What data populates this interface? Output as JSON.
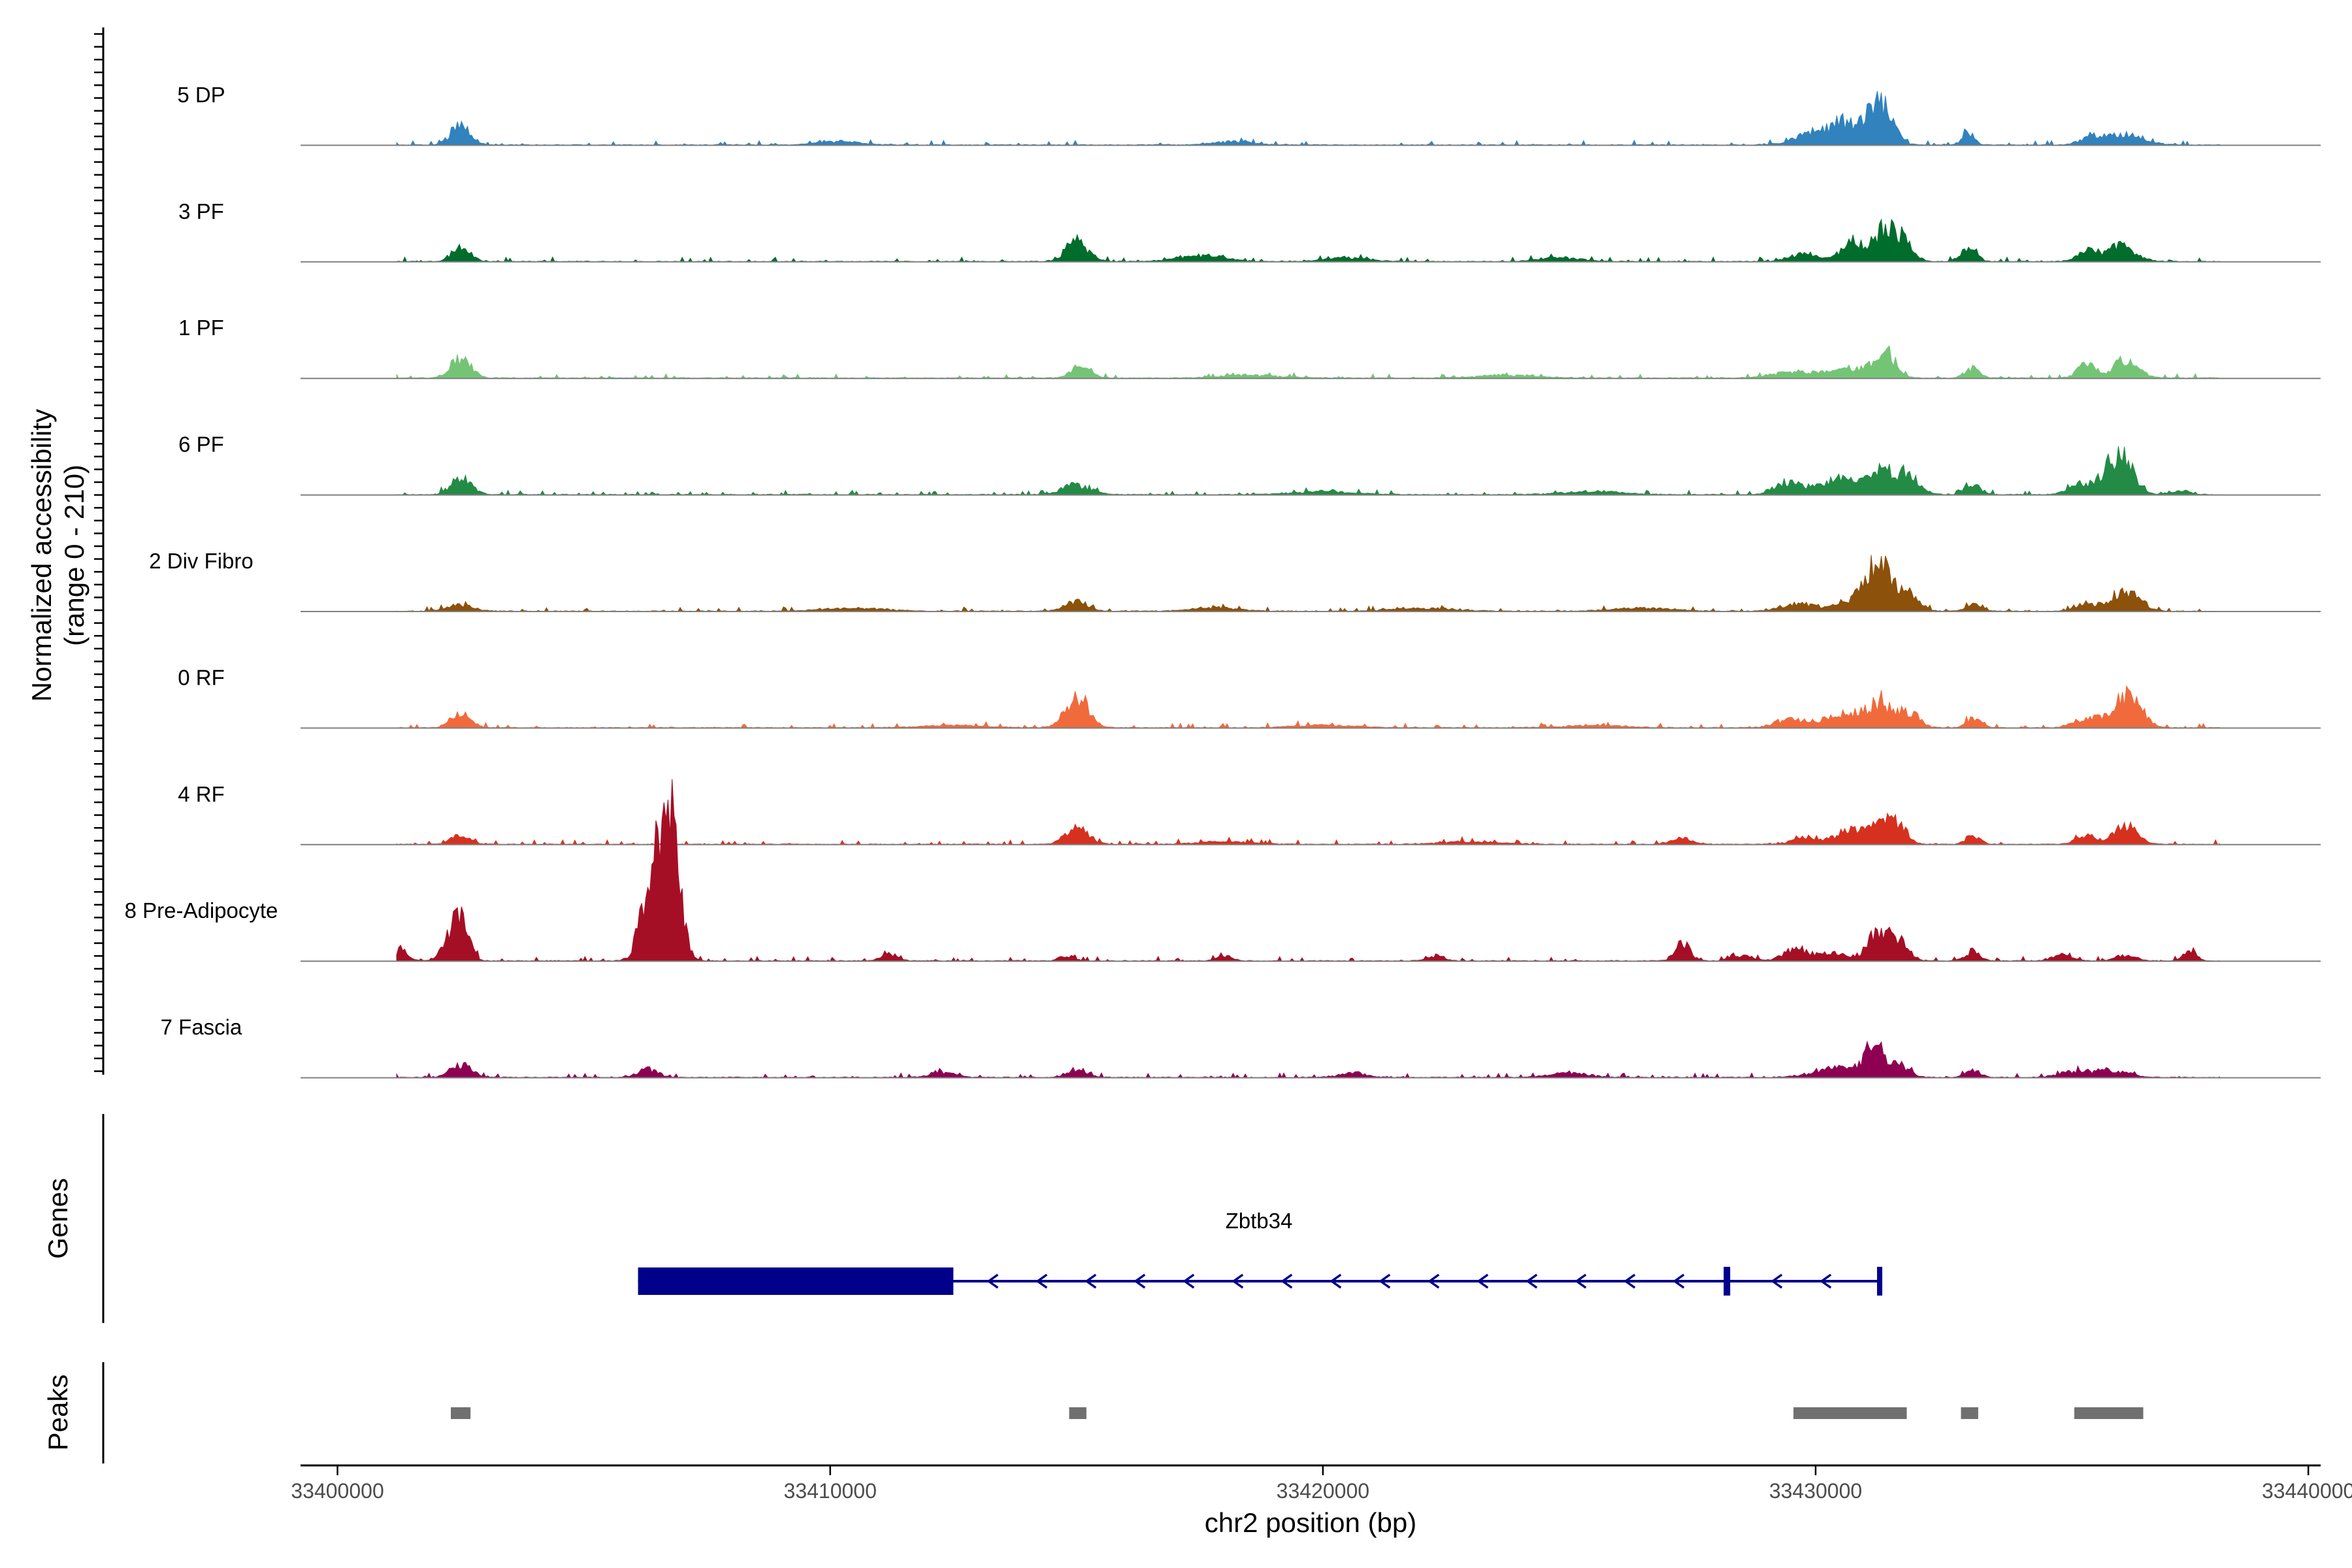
{
  "chart_data": {
    "type": "area",
    "title": "",
    "ylabel": [
      "Normalized accessibility",
      "(range 0 - 210)"
    ],
    "ylim": [
      0,
      210
    ],
    "xlabel": "chr2 position (bp)",
    "xlim": [
      33399250,
      33440250
    ],
    "xticks": [
      33400000,
      33410000,
      33420000,
      33430000,
      33440000
    ],
    "xtick_labels": [
      "33400000",
      "33410000",
      "33420000",
      "33430000",
      "33440000"
    ],
    "tracks": [
      {
        "name": "5 DP",
        "color": "#3182BD",
        "peaks": [
          [
            33402500,
            36,
            200
          ],
          [
            33430200,
            28,
            500
          ],
          [
            33430700,
            30,
            300
          ],
          [
            33431400,
            48,
            220
          ],
          [
            33431200,
            38,
            180
          ],
          [
            33433100,
            22,
            120
          ],
          [
            33436300,
            22,
            350
          ],
          [
            33435600,
            12,
            250
          ],
          [
            33410200,
            7,
            400
          ],
          [
            33418200,
            7,
            400
          ]
        ]
      },
      {
        "name": "3 PF",
        "color": "#006D2C",
        "peaks": [
          [
            33402500,
            28,
            180
          ],
          [
            33415000,
            40,
            220
          ],
          [
            33417500,
            12,
            450
          ],
          [
            33429800,
            16,
            300
          ],
          [
            33430800,
            36,
            250
          ],
          [
            33431400,
            60,
            200
          ],
          [
            33431800,
            40,
            180
          ],
          [
            33433100,
            28,
            150
          ],
          [
            33435500,
            20,
            200
          ],
          [
            33436200,
            30,
            280
          ],
          [
            33420500,
            8,
            400
          ],
          [
            33424800,
            8,
            400
          ]
        ]
      },
      {
        "name": "1 PF",
        "color": "#74C476",
        "peaks": [
          [
            33402500,
            40,
            200
          ],
          [
            33415100,
            24,
            200
          ],
          [
            33429500,
            12,
            400
          ],
          [
            33430600,
            20,
            350
          ],
          [
            33431400,
            52,
            220
          ],
          [
            33433200,
            20,
            150
          ],
          [
            33435500,
            28,
            180
          ],
          [
            33436300,
            36,
            250
          ],
          [
            33418500,
            6,
            600
          ],
          [
            33423800,
            6,
            600
          ]
        ]
      },
      {
        "name": "6 PF",
        "color": "#238B45",
        "peaks": [
          [
            33402500,
            36,
            200
          ],
          [
            33415000,
            20,
            280
          ],
          [
            33429400,
            24,
            250
          ],
          [
            33430400,
            28,
            400
          ],
          [
            33431300,
            44,
            350
          ],
          [
            33431900,
            30,
            220
          ],
          [
            33433200,
            20,
            150
          ],
          [
            33435300,
            20,
            200
          ],
          [
            33436200,
            72,
            250
          ],
          [
            33435800,
            22,
            200
          ],
          [
            33437400,
            8,
            200
          ],
          [
            33420000,
            6,
            600
          ],
          [
            33425500,
            6,
            600
          ]
        ]
      },
      {
        "name": "2 Div Fibro",
        "color": "#8C510A",
        "peaks": [
          [
            33402500,
            12,
            250
          ],
          [
            33415000,
            20,
            220
          ],
          [
            33417800,
            8,
            400
          ],
          [
            33429600,
            14,
            300
          ],
          [
            33430700,
            20,
            400
          ],
          [
            33431300,
            88,
            250
          ],
          [
            33431900,
            28,
            200
          ],
          [
            33433200,
            14,
            150
          ],
          [
            33435500,
            16,
            200
          ],
          [
            33436300,
            38,
            280
          ],
          [
            33410500,
            6,
            600
          ],
          [
            33422000,
            6,
            600
          ],
          [
            33426500,
            6,
            600
          ]
        ]
      },
      {
        "name": "0 RF",
        "color": "#F16A3C",
        "peaks": [
          [
            33402500,
            28,
            200
          ],
          [
            33415000,
            60,
            230
          ],
          [
            33429500,
            16,
            300
          ],
          [
            33430600,
            26,
            400
          ],
          [
            33431300,
            44,
            250
          ],
          [
            33431900,
            30,
            200
          ],
          [
            33433200,
            18,
            150
          ],
          [
            33435500,
            18,
            250
          ],
          [
            33436300,
            66,
            280
          ],
          [
            33412500,
            5,
            600
          ],
          [
            33420000,
            5,
            600
          ],
          [
            33425500,
            5,
            600
          ]
        ]
      },
      {
        "name": "4 RF",
        "color": "#D6311F",
        "peaks": [
          [
            33402500,
            18,
            180
          ],
          [
            33415000,
            30,
            230
          ],
          [
            33427300,
            12,
            200
          ],
          [
            33429800,
            14,
            250
          ],
          [
            33430700,
            28,
            300
          ],
          [
            33431300,
            42,
            200
          ],
          [
            33431700,
            36,
            180
          ],
          [
            33433200,
            14,
            150
          ],
          [
            33435500,
            16,
            200
          ],
          [
            33436300,
            36,
            230
          ],
          [
            33418000,
            5,
            600
          ],
          [
            33423000,
            5,
            600
          ]
        ]
      },
      {
        "name": "8 Pre-Adipocyte",
        "color": "#A50F25",
        "peaks": [
          [
            33406500,
            150,
            200
          ],
          [
            33406700,
            190,
            170
          ],
          [
            33406900,
            100,
            150
          ],
          [
            33406200,
            60,
            150
          ],
          [
            33402500,
            96,
            160
          ],
          [
            33402200,
            24,
            140
          ],
          [
            33401300,
            24,
            120
          ],
          [
            33431300,
            60,
            220
          ],
          [
            33431700,
            32,
            200
          ],
          [
            33427300,
            34,
            150
          ],
          [
            33429600,
            22,
            250
          ],
          [
            33430400,
            16,
            300
          ],
          [
            33433200,
            20,
            150
          ],
          [
            33435000,
            12,
            200
          ],
          [
            33436300,
            12,
            200
          ],
          [
            33437600,
            22,
            120
          ],
          [
            33411200,
            14,
            150
          ],
          [
            33414800,
            10,
            150
          ],
          [
            33418000,
            10,
            150
          ],
          [
            33422300,
            10,
            150
          ],
          [
            33428500,
            10,
            200
          ]
        ]
      },
      {
        "name": "7 Fascia",
        "color": "#8E0152",
        "peaks": [
          [
            33402500,
            26,
            200
          ],
          [
            33406300,
            16,
            200
          ],
          [
            33415000,
            16,
            200
          ],
          [
            33412300,
            10,
            250
          ],
          [
            33420600,
            10,
            250
          ],
          [
            33430400,
            18,
            450
          ],
          [
            33431200,
            58,
            200
          ],
          [
            33431700,
            22,
            200
          ],
          [
            33433200,
            16,
            150
          ],
          [
            33435200,
            10,
            300
          ],
          [
            33436000,
            14,
            350
          ],
          [
            33425000,
            8,
            400
          ]
        ]
      }
    ]
  },
  "genes_panel": {
    "axis_label": "Genes",
    "gene_name": "Zbtb34",
    "strand": "-",
    "color": "#00008B",
    "thick_start": 33406100,
    "thick_end": 33412500,
    "exon_mark": 33428200,
    "tx_end": 33431300
  },
  "peaks_panel": {
    "axis_label": "Peaks",
    "color": "#707070",
    "regions": [
      [
        33402300,
        33402700
      ],
      [
        33414850,
        33415200
      ],
      [
        33429550,
        33431850
      ],
      [
        33432950,
        33433300
      ],
      [
        33435250,
        33436650
      ]
    ]
  }
}
